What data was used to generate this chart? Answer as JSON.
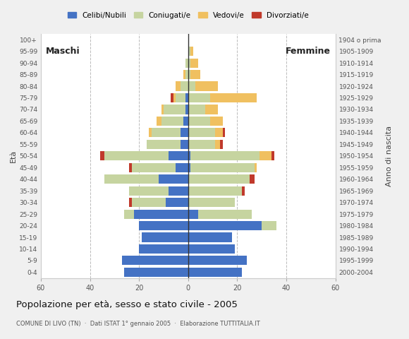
{
  "age_groups": [
    "0-4",
    "5-9",
    "10-14",
    "15-19",
    "20-24",
    "25-29",
    "30-34",
    "35-39",
    "40-44",
    "45-49",
    "50-54",
    "55-59",
    "60-64",
    "65-69",
    "70-74",
    "75-79",
    "80-84",
    "85-89",
    "90-94",
    "95-99",
    "100+"
  ],
  "birth_years": [
    "2000-2004",
    "1995-1999",
    "1990-1994",
    "1985-1989",
    "1980-1984",
    "1975-1979",
    "1970-1974",
    "1965-1969",
    "1960-1964",
    "1955-1959",
    "1950-1954",
    "1945-1949",
    "1940-1944",
    "1935-1939",
    "1930-1934",
    "1925-1929",
    "1920-1924",
    "1915-1919",
    "1910-1914",
    "1905-1909",
    "1904 o prima"
  ],
  "colors": {
    "celibe": "#4472c4",
    "coniugato": "#c6d4a0",
    "vedovo": "#f0c060",
    "divorziato": "#c0392b"
  },
  "males": {
    "celibe": [
      26,
      27,
      20,
      19,
      20,
      22,
      9,
      8,
      12,
      5,
      8,
      3,
      3,
      2,
      1,
      1,
      0,
      0,
      0,
      0,
      0
    ],
    "coniugato": [
      0,
      0,
      0,
      0,
      0,
      4,
      14,
      16,
      22,
      18,
      26,
      14,
      12,
      9,
      9,
      4,
      3,
      1,
      1,
      0,
      0
    ],
    "vedovo": [
      0,
      0,
      0,
      0,
      0,
      0,
      0,
      0,
      0,
      0,
      0,
      0,
      1,
      2,
      1,
      1,
      2,
      1,
      0,
      0,
      0
    ],
    "divorziato": [
      0,
      0,
      0,
      0,
      0,
      0,
      1,
      0,
      0,
      1,
      2,
      0,
      0,
      0,
      0,
      1,
      0,
      0,
      0,
      0,
      0
    ]
  },
  "females": {
    "celibe": [
      22,
      24,
      19,
      18,
      30,
      4,
      0,
      0,
      0,
      1,
      1,
      0,
      0,
      0,
      0,
      0,
      0,
      0,
      0,
      0,
      0
    ],
    "coniugato": [
      0,
      0,
      0,
      0,
      6,
      22,
      19,
      22,
      25,
      26,
      28,
      11,
      11,
      9,
      7,
      9,
      3,
      1,
      1,
      1,
      0
    ],
    "vedovo": [
      0,
      0,
      0,
      0,
      0,
      0,
      0,
      0,
      0,
      1,
      5,
      2,
      3,
      5,
      5,
      19,
      9,
      4,
      3,
      1,
      0
    ],
    "divorziato": [
      0,
      0,
      0,
      0,
      0,
      0,
      0,
      1,
      2,
      0,
      1,
      1,
      1,
      0,
      0,
      0,
      0,
      0,
      0,
      0,
      0
    ]
  },
  "xlim": 60,
  "xticks": [
    -60,
    -40,
    -20,
    0,
    20,
    40,
    60
  ],
  "title": "Popolazione per età, sesso e stato civile - 2005",
  "subtitle": "COMUNE DI LIVO (TN)  ·  Dati ISTAT 1° gennaio 2005  ·  Elaborazione TUTTITALIA.IT",
  "label_maschi": "Maschi",
  "label_femmine": "Femmine",
  "ylabel_left": "Età",
  "ylabel_right": "Anno di nascita",
  "legend_labels": [
    "Celibi/Nubili",
    "Coniugati/e",
    "Vedovi/e",
    "Divorziati/e"
  ],
  "background_color": "#f0f0f0",
  "plot_bg": "#ffffff"
}
